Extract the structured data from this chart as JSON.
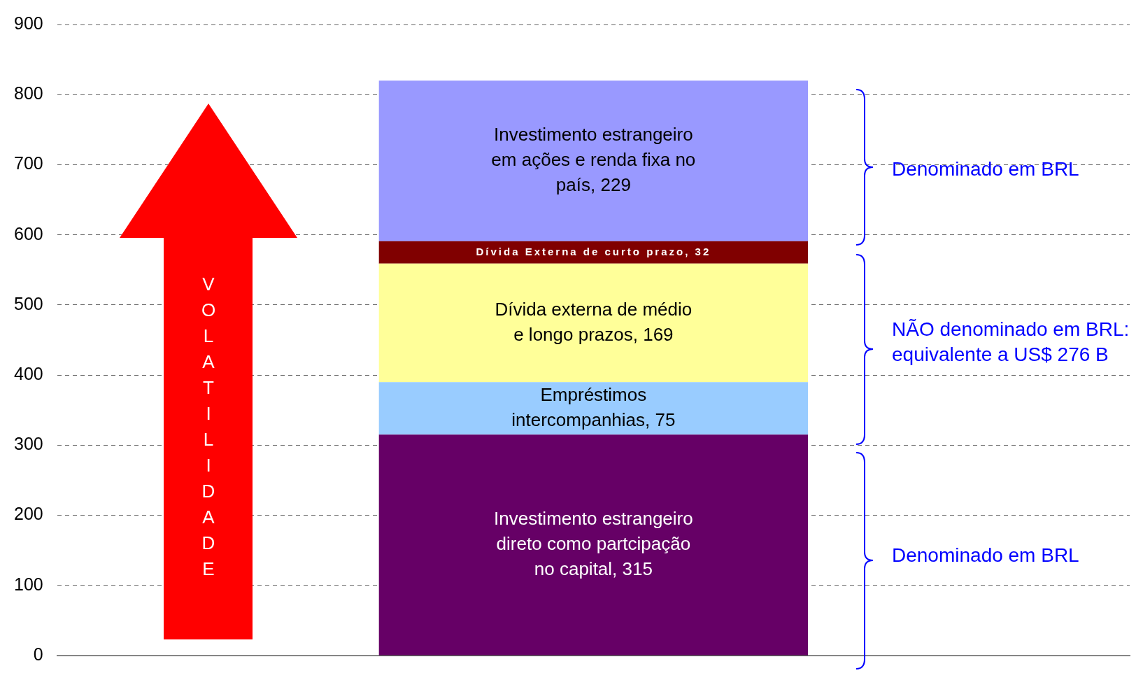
{
  "chart_data": {
    "type": "bar",
    "stacked": true,
    "categories": [
      null
    ],
    "ylim": [
      0,
      900
    ],
    "yticks": [
      0,
      100,
      200,
      300,
      400,
      500,
      600,
      700,
      800,
      900
    ],
    "grid": "y",
    "legend": false,
    "series": [
      {
        "color": "#660066",
        "values": [
          315
        ],
        "value_labels": [
          "Investimento estrangeiro direto como partcipação no capital, 315"
        ]
      },
      {
        "color": "#99ccff",
        "values": [
          75
        ],
        "value_labels": [
          "Empréstimos intercompanhias, 75"
        ]
      },
      {
        "color": "#ffff99",
        "values": [
          169
        ],
        "value_labels": [
          "Dívida externa de médio e longo prazos, 169"
        ]
      },
      {
        "color": "#800000",
        "values": [
          32
        ],
        "value_labels": [
          "Dívida Externa de curto prazo, 32"
        ]
      },
      {
        "color": "#9999ff",
        "values": [
          229
        ],
        "value_labels": [
          "Investimento estrangeiro em ações e renda fixa no país, 229"
        ]
      }
    ],
    "annotations": [
      "VOLATILIDADE",
      "Denominado em BRL",
      "NÃO denominado em BRL: equivalente a US$ 276 B",
      "Denominado em BRL"
    ]
  }
}
